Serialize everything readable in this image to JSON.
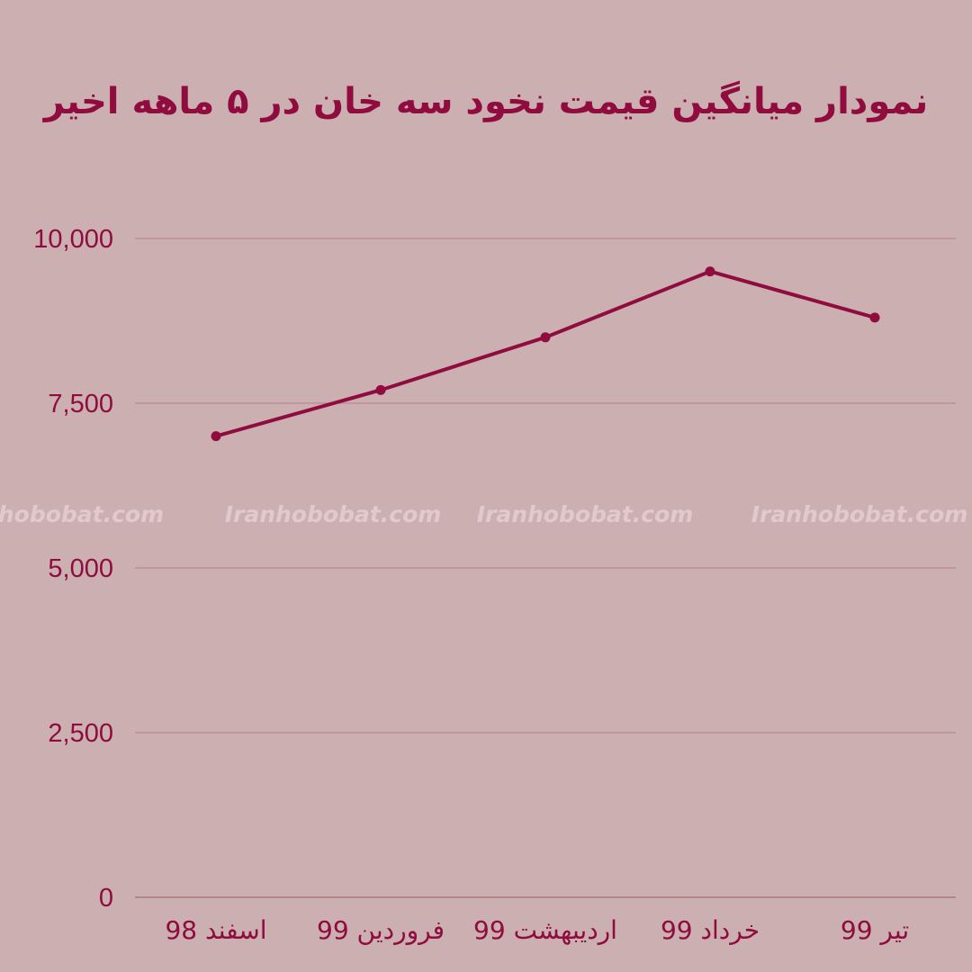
{
  "colors": {
    "background": "#cbafb1",
    "accent": "#900c3f",
    "grid": "#b8898f",
    "watermark": "#e2cacc"
  },
  "watermark": [
    "hobobat.com",
    "Iranhobobat.com",
    "Iranhobobat.com",
    "Iranhobobat.com"
  ],
  "chart_data": {
    "type": "line",
    "title": "نمودار میانگین قیمت نخود سه خان در ۵ ماهه اخیر",
    "xlabel": "",
    "ylabel": "",
    "categories": [
      "اسفند 98",
      "فروردین 99",
      "اردیبهشت 99",
      "خرداد 99",
      "تیر 99"
    ],
    "category_order": "right-to-left",
    "series": [
      {
        "values": [
          7000,
          7700,
          8500,
          9500,
          8800
        ]
      }
    ],
    "ylim": [
      0,
      10000
    ],
    "yticks": [
      0,
      2500,
      5000,
      7500,
      10000
    ],
    "ytick_labels": [
      "0",
      "2,500",
      "5,000",
      "7,500",
      "10,000"
    ],
    "grid": true,
    "legend": "none"
  }
}
